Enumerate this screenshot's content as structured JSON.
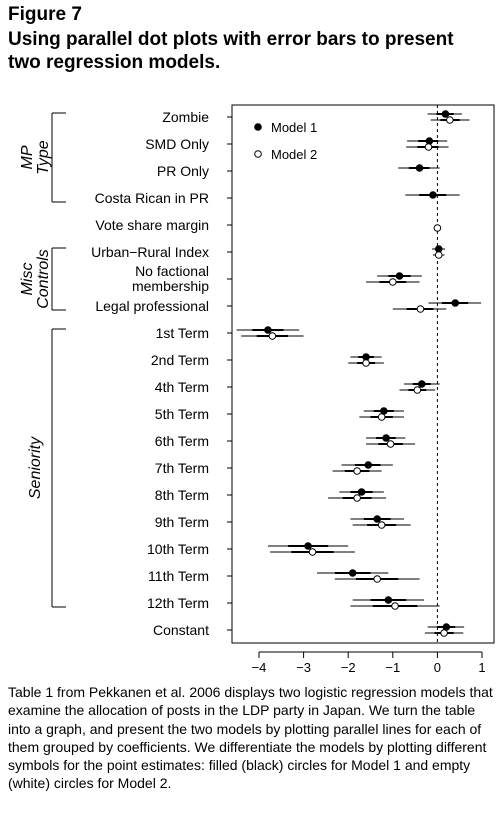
{
  "figure": {
    "label": "Figure 7",
    "title": "Using parallel dot plots with error bars to present two regression models."
  },
  "caption": "Table 1 from Pekkanen et al. 2006 displays two logistic regression models that examine the allocation of posts in the LDP party in Japan. We turn the table into a graph, and present the two models by plotting parallel lines for each of them grouped by coefficients. We differentiate the models by plotting different symbols for the point estimates: filled (black) circles for Model 1 and empty (white) circles for Model 2.",
  "chart_data": {
    "type": "scatter",
    "xlim": [
      -4,
      1
    ],
    "xticks": [
      -4,
      -3,
      -2,
      -1,
      0,
      1
    ],
    "reference_line": 0,
    "legend": {
      "position": "top-left",
      "entries": [
        "Model 1",
        "Model 2"
      ]
    },
    "groups": [
      {
        "label": "MP Type",
        "first": 0,
        "last": 3
      },
      {
        "label": "Misc Controls",
        "first": 5,
        "last": 7
      },
      {
        "label": "Seniority",
        "first": 8,
        "last": 18
      }
    ],
    "categories": [
      "Zombie",
      "SMD Only",
      "PR Only",
      "Costa Rican in PR",
      "Vote share margin",
      "Urban−Rural Index",
      "No factional membership",
      "Legal professional",
      "1st Term",
      "2nd Term",
      "4th Term",
      "5th Term",
      "6th Term",
      "7th Term",
      "8th Term",
      "9th Term",
      "10th Term",
      "11th Term",
      "12th Term",
      "Constant"
    ],
    "series": [
      {
        "name": "Model 1",
        "marker": "filled",
        "estimates": [
          0.18,
          -0.18,
          -0.4,
          -0.1,
          null,
          0.03,
          -0.85,
          0.4,
          -3.8,
          -1.6,
          -0.35,
          -1.2,
          -1.15,
          -1.55,
          -1.7,
          -1.35,
          -2.9,
          -1.9,
          -1.1,
          0.2
        ],
        "lower": [
          -0.22,
          -0.68,
          -0.88,
          -0.72,
          null,
          -0.12,
          -1.35,
          -0.2,
          -4.5,
          -1.95,
          -0.75,
          -1.65,
          -1.6,
          -2.15,
          -2.2,
          -1.95,
          -3.8,
          -2.7,
          -1.9,
          -0.22
        ],
        "upper": [
          0.55,
          0.22,
          0.05,
          0.5,
          null,
          0.17,
          -0.35,
          0.98,
          -3.1,
          -1.25,
          0.05,
          -0.75,
          -0.72,
          -1.0,
          -1.2,
          -0.75,
          -2.0,
          -1.1,
          -0.3,
          0.6
        ]
      },
      {
        "name": "Model 2",
        "marker": "open",
        "estimates": [
          0.28,
          -0.2,
          null,
          null,
          0.0,
          0.03,
          -1.0,
          -0.38,
          -3.7,
          -1.6,
          -0.45,
          -1.25,
          -1.05,
          -1.8,
          -1.8,
          -1.25,
          -2.8,
          -1.35,
          -0.95,
          0.15
        ],
        "lower": [
          -0.15,
          -0.7,
          null,
          null,
          -0.02,
          -0.1,
          -1.6,
          -1.0,
          -4.4,
          -2.0,
          -0.85,
          -1.75,
          -1.6,
          -2.35,
          -2.45,
          -1.9,
          -3.75,
          -2.3,
          -1.95,
          -0.28
        ],
        "upper": [
          0.72,
          0.25,
          null,
          null,
          0.02,
          0.16,
          -0.4,
          0.2,
          -3.0,
          -1.2,
          -0.05,
          -0.75,
          -0.5,
          -1.25,
          -1.15,
          -0.6,
          -1.85,
          -0.4,
          0.05,
          0.58
        ]
      }
    ]
  }
}
